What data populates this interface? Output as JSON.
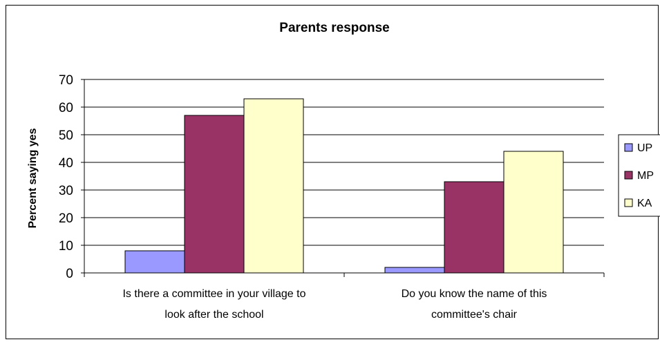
{
  "chart_data": {
    "type": "bar",
    "title": "Parents response",
    "ylabel": "Percent saying yes",
    "xlabel": "",
    "ylim": [
      0,
      70
    ],
    "yticks": [
      0,
      10,
      20,
      30,
      40,
      50,
      60,
      70
    ],
    "grid": true,
    "legend_position": "right",
    "categories": [
      [
        "Is there a committee in your village to",
        "look after the school"
      ],
      [
        "Do you know  the name of this",
        "committee's chair"
      ]
    ],
    "series": [
      {
        "name": "UP",
        "color": "#9999ff",
        "values": [
          8,
          2
        ]
      },
      {
        "name": "MP",
        "color": "#993366",
        "values": [
          57,
          33
        ]
      },
      {
        "name": "KA",
        "color": "#ffffcc",
        "values": [
          63,
          44
        ]
      }
    ]
  }
}
